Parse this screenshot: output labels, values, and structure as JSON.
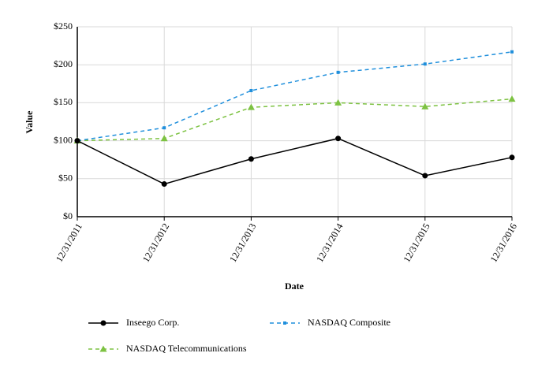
{
  "chart_data": {
    "type": "line",
    "x_label": "Date",
    "y_label": "Value",
    "categories": [
      "12/31/2011",
      "12/31/2012",
      "12/31/2013",
      "12/31/2014",
      "12/31/2015",
      "12/31/2016"
    ],
    "series": [
      {
        "name": "Inseego Corp.",
        "color": "#000000",
        "dashed": false,
        "marker": "circle",
        "values": [
          100,
          43,
          76,
          103,
          54,
          78
        ]
      },
      {
        "name": "NASDAQ Composite",
        "color": "#1f8fdc",
        "dashed": true,
        "marker": "square",
        "values": [
          100,
          117,
          166,
          190,
          201,
          217
        ]
      },
      {
        "name": "NASDAQ Telecommunications",
        "color": "#7dc242",
        "dashed": true,
        "marker": "triangle",
        "values": [
          100,
          103,
          144,
          150,
          145,
          155
        ]
      }
    ],
    "ylim": [
      0,
      250
    ],
    "yticks": [
      {
        "value": 0,
        "label": "$0"
      },
      {
        "value": 50,
        "label": "$50"
      },
      {
        "value": 100,
        "label": "$100"
      },
      {
        "value": 150,
        "label": "$150"
      },
      {
        "value": 200,
        "label": "$200"
      },
      {
        "value": 250,
        "label": "$250"
      }
    ],
    "grid": true
  }
}
